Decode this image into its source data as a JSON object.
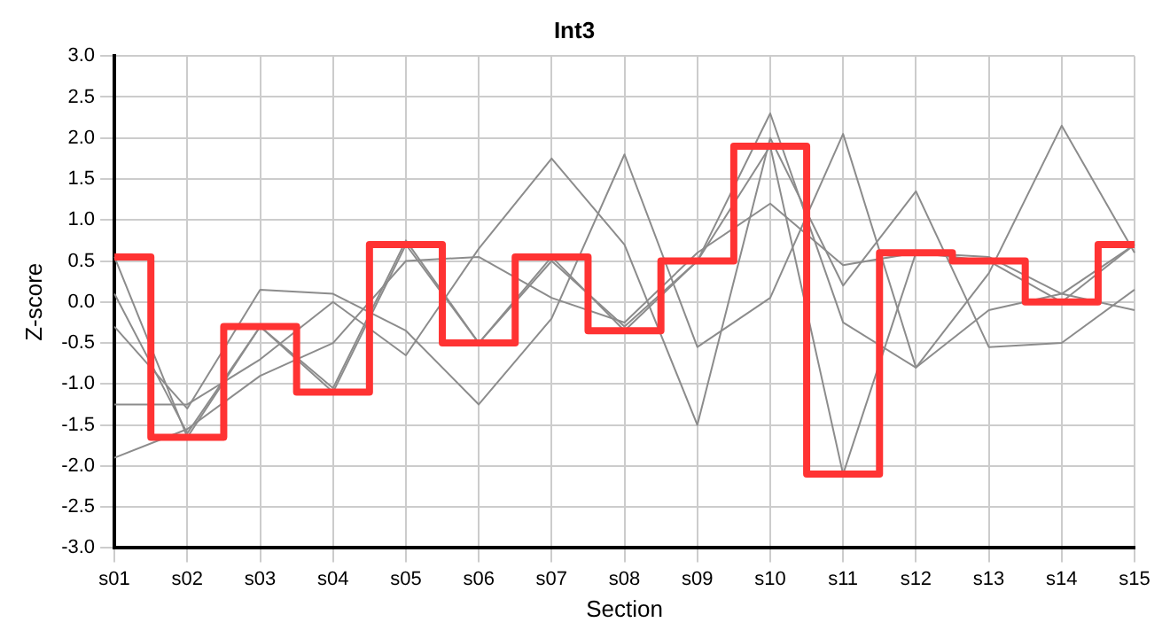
{
  "chart_data": {
    "type": "line",
    "title": "Int3",
    "xlabel": "Section",
    "ylabel": "Z-score",
    "categories": [
      "s01",
      "s02",
      "s03",
      "s04",
      "s05",
      "s06",
      "s07",
      "s08",
      "s09",
      "s10",
      "s11",
      "s12",
      "s13",
      "s14",
      "s15"
    ],
    "ylim": [
      -3,
      3
    ],
    "yticks": [
      {
        "value": -3,
        "label": "-3.0"
      },
      {
        "value": -2.5,
        "label": "-2.5"
      },
      {
        "value": -2,
        "label": "-2.0"
      },
      {
        "value": -1.5,
        "label": "-1.5"
      },
      {
        "value": -1,
        "label": "-1.0"
      },
      {
        "value": -0.5,
        "label": "-0.5"
      },
      {
        "value": 0,
        "label": "0.0"
      },
      {
        "value": 0.5,
        "label": "0.5"
      },
      {
        "value": 1,
        "label": "1.0"
      },
      {
        "value": 1.5,
        "label": "1.5"
      },
      {
        "value": 2,
        "label": "2.0"
      },
      {
        "value": 2.5,
        "label": "2.5"
      },
      {
        "value": 3,
        "label": "3.0"
      }
    ],
    "grid": true,
    "legend": false,
    "marker": "none",
    "series": [
      {
        "type": "line",
        "color": "#8c8c8c",
        "values": [
          0.55,
          -1.65,
          -0.3,
          -1.1,
          0.7,
          -0.5,
          0.55,
          -0.35,
          0.5,
          1.9,
          -2.1,
          0.6,
          0.5,
          0,
          0.7
        ]
      },
      {
        "type": "line",
        "color": "#8c8c8c",
        "values": [
          0.1,
          -1.6,
          -0.3,
          -1.05,
          0.75,
          -0.5,
          0.5,
          -0.3,
          0.5,
          2.3,
          -0.25,
          -0.8,
          -0.1,
          0.1,
          0.7
        ]
      },
      {
        "type": "line",
        "color": "#8c8c8c",
        "values": [
          -0.3,
          -1.3,
          0.15,
          0.1,
          -0.35,
          -1.25,
          -0.2,
          1.8,
          -0.55,
          0.05,
          2.05,
          -0.8,
          0.35,
          2.15,
          0.6
        ]
      },
      {
        "type": "line",
        "color": "#8c8c8c",
        "values": [
          -1.25,
          -1.25,
          -0.7,
          0,
          -0.65,
          0.65,
          1.75,
          0.7,
          -1.5,
          2,
          0.2,
          1.35,
          -0.55,
          -0.5,
          0.15
        ]
      },
      {
        "type": "line",
        "color": "#8c8c8c",
        "values": [
          -1.9,
          -1.55,
          -0.9,
          -0.5,
          0.5,
          0.55,
          0.05,
          -0.25,
          0.6,
          1.2,
          0.45,
          0.6,
          0.55,
          0.1,
          -0.1
        ]
      },
      {
        "type": "step",
        "color": "#ff3333",
        "values": [
          0.55,
          -1.65,
          -0.3,
          -1.1,
          0.7,
          -0.5,
          0.55,
          -0.35,
          0.5,
          1.9,
          -2.1,
          0.6,
          0.5,
          0,
          0.7
        ]
      }
    ]
  }
}
